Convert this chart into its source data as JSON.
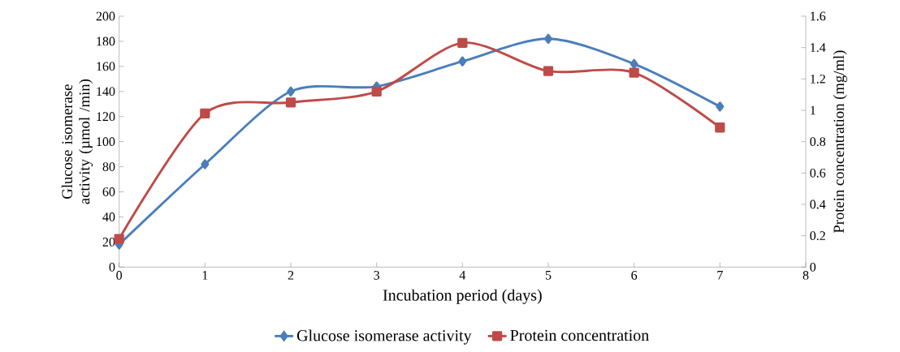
{
  "chart_data": {
    "type": "line",
    "xlabel": "Incubation period (days)",
    "ylabel": "Glucose isomerase activity (µmol /min)",
    "y2label": "Protein concentration (mg/ml)",
    "x": [
      0,
      1,
      2,
      3,
      4,
      5,
      6,
      7
    ],
    "series": [
      {
        "name": "Glucose isomerase activity",
        "color": "#4a7ebb",
        "marker": "diamond",
        "values": [
          18,
          82,
          140,
          144,
          164,
          182,
          162,
          128
        ]
      },
      {
        "name": "Protein concentration",
        "color": "#be4b48",
        "marker": "square",
        "axis": "y2",
        "values": [
          0.18,
          0.98,
          1.05,
          1.12,
          1.43,
          1.25,
          1.24,
          0.89
        ]
      }
    ],
    "xlim": [
      0,
      8
    ],
    "xticks": [
      0,
      1,
      2,
      3,
      4,
      5,
      6,
      7,
      8
    ],
    "ylim": [
      0,
      200
    ],
    "yticks": [
      0,
      20,
      40,
      60,
      80,
      100,
      120,
      140,
      160,
      180,
      200
    ],
    "y2lim": [
      0,
      1.6
    ],
    "y2ticks": [
      0,
      {
        "value": 0.2,
        "label": "0.2"
      },
      {
        "value": 0.4,
        "label": "0.4"
      },
      {
        "value": 0.6,
        "label": "0.6"
      },
      {
        "value": 0.8,
        "label": "0.8"
      },
      1,
      {
        "value": 1.2,
        "label": "1.2"
      },
      {
        "value": 1.4,
        "label": "1.4"
      },
      {
        "value": 1.6,
        "label": "1.6"
      }
    ],
    "grid": false,
    "legend": "bottom",
    "line_style": "solid"
  }
}
